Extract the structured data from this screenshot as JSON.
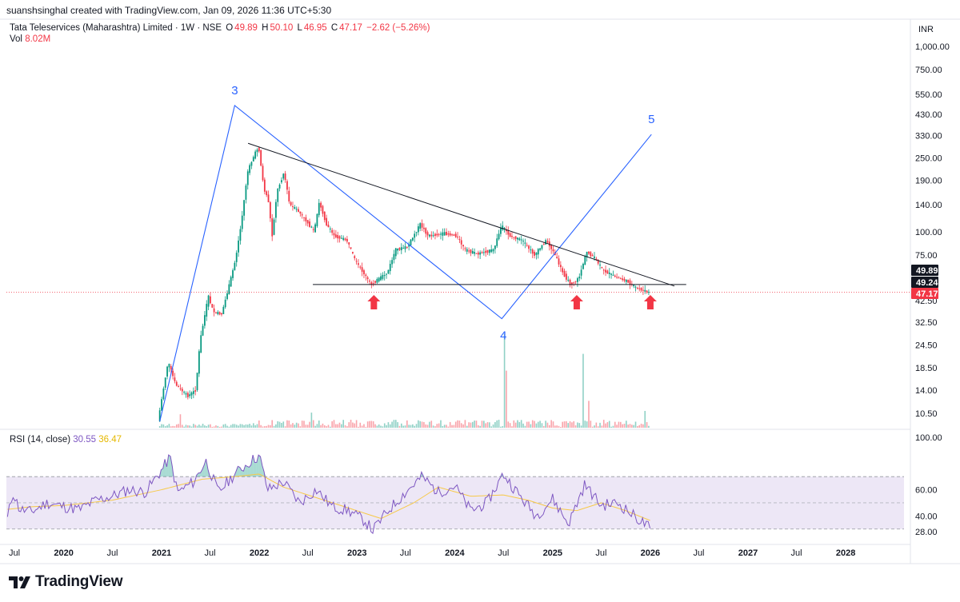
{
  "header": {
    "attribution": "suanshsinghal created with TradingView.com, Jan 09, 2026 11:36 UTC+5:30"
  },
  "legend": {
    "symbol": "Tata Teleservices (Maharashtra) Limited · 1W · NSE",
    "open_label": "O",
    "open": "49.89",
    "high_label": "H",
    "high": "50.10",
    "low_label": "L",
    "low": "46.95",
    "close_label": "C",
    "close": "47.17",
    "change": "−2.62 (−5.26%)",
    "vol_label": "Vol",
    "vol": "8.02M"
  },
  "rsi_legend": {
    "label": "RSI (14, close)",
    "rsi": "30.55",
    "ma": "36.47"
  },
  "price_axis": {
    "currency": "INR",
    "ticks": [
      "1,000.00",
      "750.00",
      "550.00",
      "430.00",
      "330.00",
      "250.00",
      "190.00",
      "140.00",
      "100.00",
      "75.00",
      "42.50",
      "32.50",
      "24.50",
      "18.50",
      "14.00",
      "10.50"
    ],
    "tags": [
      {
        "value": "49.89",
        "bg": "#131722"
      },
      {
        "value": "49.24",
        "bg": "#131722"
      },
      {
        "value": "47.17",
        "bg": "#f23645"
      }
    ]
  },
  "rsi_axis": {
    "ticks": [
      "100.00",
      "60.00",
      "40.00",
      "28.00"
    ]
  },
  "time_axis": [
    {
      "label": "Jul",
      "bold": false
    },
    {
      "label": "2020",
      "bold": true
    },
    {
      "label": "Jul",
      "bold": false
    },
    {
      "label": "2021",
      "bold": true
    },
    {
      "label": "Jul",
      "bold": false
    },
    {
      "label": "2022",
      "bold": true
    },
    {
      "label": "Jul",
      "bold": false
    },
    {
      "label": "2023",
      "bold": true
    },
    {
      "label": "Jul",
      "bold": false
    },
    {
      "label": "2024",
      "bold": true
    },
    {
      "label": "Jul",
      "bold": false
    },
    {
      "label": "2025",
      "bold": true
    },
    {
      "label": "Jul",
      "bold": false
    },
    {
      "label": "2026",
      "bold": true
    },
    {
      "label": "Jul",
      "bold": false
    },
    {
      "label": "2027",
      "bold": true
    },
    {
      "label": "Jul",
      "bold": false
    },
    {
      "label": "2028",
      "bold": true
    }
  ],
  "wave_labels": [
    "3",
    "4",
    "5"
  ],
  "footer": {
    "brand": "TradingView"
  },
  "colors": {
    "up": "#089981",
    "down": "#f23645",
    "wave": "#2962ff",
    "trend": "#131722",
    "rsi": "#7e57c2",
    "rsi_ma": "#f7c948",
    "band": "#ede7f6"
  },
  "chart_data": {
    "type": "candlestick",
    "title": "Tata Teleservices (Maharashtra) Limited · 1W · NSE",
    "scale": "log",
    "ylim": [
      9,
      1200
    ],
    "xlim": [
      "2019-06",
      "2028-07"
    ],
    "price_path": [
      [
        "2020-12-25",
        9.5
      ],
      [
        "2021-02-01",
        20
      ],
      [
        "2021-03-01",
        15
      ],
      [
        "2021-04-15",
        13
      ],
      [
        "2021-05-15",
        14
      ],
      [
        "2021-06-01",
        26
      ],
      [
        "2021-07-01",
        45
      ],
      [
        "2021-07-20",
        37
      ],
      [
        "2021-08-20",
        36
      ],
      [
        "2021-09-15",
        50
      ],
      [
        "2021-10-10",
        70
      ],
      [
        "2021-11-01",
        110
      ],
      [
        "2021-11-25",
        210
      ],
      [
        "2021-12-15",
        250
      ],
      [
        "2022-01-05",
        290
      ],
      [
        "2022-01-25",
        170
      ],
      [
        "2022-02-10",
        150
      ],
      [
        "2022-02-25",
        95
      ],
      [
        "2022-03-15",
        165
      ],
      [
        "2022-04-10",
        210
      ],
      [
        "2022-05-01",
        140
      ],
      [
        "2022-06-01",
        130
      ],
      [
        "2022-07-01",
        115
      ],
      [
        "2022-08-01",
        100
      ],
      [
        "2022-08-20",
        145
      ],
      [
        "2022-09-15",
        110
      ],
      [
        "2022-10-15",
        95
      ],
      [
        "2022-12-01",
        90
      ],
      [
        "2023-01-01",
        70
      ],
      [
        "2023-02-01",
        60
      ],
      [
        "2023-03-01",
        52
      ],
      [
        "2023-04-01",
        56
      ],
      [
        "2023-05-01",
        60
      ],
      [
        "2023-06-01",
        80
      ],
      [
        "2023-07-15",
        83
      ],
      [
        "2023-09-01",
        110
      ],
      [
        "2023-10-01",
        95
      ],
      [
        "2023-12-01",
        98
      ],
      [
        "2024-01-15",
        95
      ],
      [
        "2024-02-15",
        80
      ],
      [
        "2024-04-01",
        76
      ],
      [
        "2024-06-01",
        80
      ],
      [
        "2024-07-01",
        108
      ],
      [
        "2024-08-01",
        95
      ],
      [
        "2024-09-15",
        90
      ],
      [
        "2024-11-01",
        75
      ],
      [
        "2024-12-15",
        90
      ],
      [
        "2025-01-15",
        76
      ],
      [
        "2025-02-15",
        60
      ],
      [
        "2025-03-15",
        52
      ],
      [
        "2025-04-15",
        56
      ],
      [
        "2025-05-15",
        78
      ],
      [
        "2025-06-15",
        72
      ],
      [
        "2025-07-15",
        62
      ],
      [
        "2025-09-01",
        57
      ],
      [
        "2025-10-15",
        54
      ],
      [
        "2025-11-15",
        50
      ],
      [
        "2026-01-01",
        47.17
      ]
    ],
    "volume_spikes": [
      [
        "2021-03-15",
        4
      ],
      [
        "2022-07-15",
        4.5
      ],
      [
        "2024-07-08",
        28
      ],
      [
        "2024-07-15",
        17
      ],
      [
        "2025-04-28",
        22
      ],
      [
        "2025-05-15",
        8
      ],
      [
        "2025-12-15",
        5
      ]
    ],
    "annotations": {
      "elliott_wave": [
        {
          "label": "",
          "date": "2020-12-25",
          "price": 9.5
        },
        {
          "label": "3",
          "date": "2021-10-01",
          "price": 480
        },
        {
          "label": "4",
          "date": "2024-06-25",
          "price": 34
        },
        {
          "label": "5",
          "date": "2026-01-05",
          "price": 335
        }
      ],
      "trendline_resistance": [
        [
          "2021-11-20",
          300
        ],
        [
          "2026-04-01",
          51
        ]
      ],
      "trendline_support": [
        [
          "2022-07-20",
          52
        ],
        [
          "2026-05-15",
          52
        ]
      ],
      "support_arrows": [
        "2023-03-05",
        "2025-04-01",
        "2026-01-01"
      ],
      "current_price_line": 47.17
    },
    "rsi": {
      "name": "RSI (14, close)",
      "ylim": [
        25,
        100
      ],
      "upper_band": 70,
      "mid": 50,
      "lower_band": 30,
      "path": [
        [
          "2019-06-05",
          38
        ],
        [
          "2019-06-25",
          58
        ],
        [
          "2019-07-20",
          45
        ],
        [
          "2019-09-01",
          43
        ],
        [
          "2019-11-01",
          50
        ],
        [
          "2020-01-01",
          47
        ],
        [
          "2020-03-01",
          45
        ],
        [
          "2020-05-01",
          52
        ],
        [
          "2020-07-01",
          55
        ],
        [
          "2020-09-01",
          60
        ],
        [
          "2020-11-01",
          58
        ],
        [
          "2021-01-01",
          75
        ],
        [
          "2021-02-01",
          85
        ],
        [
          "2021-03-01",
          58
        ],
        [
          "2021-05-01",
          66
        ],
        [
          "2021-06-15",
          82
        ],
        [
          "2021-08-01",
          58
        ],
        [
          "2021-10-01",
          72
        ],
        [
          "2021-12-01",
          82
        ],
        [
          "2022-01-01",
          86
        ],
        [
          "2022-02-01",
          60
        ],
        [
          "2022-04-01",
          66
        ],
        [
          "2022-06-01",
          50
        ],
        [
          "2022-08-01",
          60
        ],
        [
          "2022-10-01",
          47
        ],
        [
          "2022-12-01",
          44
        ],
        [
          "2023-02-01",
          36
        ],
        [
          "2023-03-01",
          29
        ],
        [
          "2023-05-01",
          45
        ],
        [
          "2023-07-01",
          58
        ],
        [
          "2023-09-01",
          70
        ],
        [
          "2023-11-01",
          58
        ],
        [
          "2024-01-01",
          63
        ],
        [
          "2024-03-01",
          44
        ],
        [
          "2024-05-01",
          50
        ],
        [
          "2024-07-01",
          72
        ],
        [
          "2024-09-01",
          55
        ],
        [
          "2024-11-01",
          40
        ],
        [
          "2025-01-01",
          53
        ],
        [
          "2025-03-01",
          34
        ],
        [
          "2025-05-01",
          64
        ],
        [
          "2025-07-01",
          48
        ],
        [
          "2025-09-01",
          50
        ],
        [
          "2025-11-01",
          40
        ],
        [
          "2026-01-01",
          30.55
        ]
      ],
      "ma_path": [
        [
          "2019-06-05",
          45
        ],
        [
          "2019-09-01",
          47
        ],
        [
          "2020-01-01",
          48
        ],
        [
          "2020-07-01",
          52
        ],
        [
          "2021-01-01",
          60
        ],
        [
          "2021-06-01",
          68
        ],
        [
          "2021-10-01",
          70
        ],
        [
          "2022-01-01",
          72
        ],
        [
          "2022-04-01",
          62
        ],
        [
          "2022-08-01",
          54
        ],
        [
          "2022-12-01",
          46
        ],
        [
          "2023-04-01",
          38
        ],
        [
          "2023-08-01",
          50
        ],
        [
          "2023-11-01",
          62
        ],
        [
          "2024-03-01",
          55
        ],
        [
          "2024-07-01",
          56
        ],
        [
          "2024-10-01",
          52
        ],
        [
          "2025-01-01",
          46
        ],
        [
          "2025-04-01",
          44
        ],
        [
          "2025-07-01",
          50
        ],
        [
          "2025-10-01",
          44
        ],
        [
          "2026-01-01",
          36.47
        ]
      ]
    }
  }
}
